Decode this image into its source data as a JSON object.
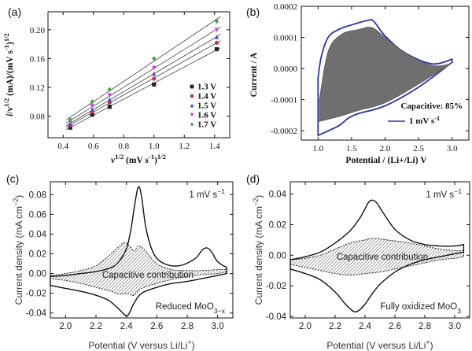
{
  "panels": {
    "a": "(a)",
    "b": "(b)",
    "c": "(c)",
    "d": "(d)"
  },
  "chart_data": [
    {
      "id": "a",
      "type": "scatter",
      "xlabel": "v1/2 (mV s-1)1/2",
      "ylabel": "i/v1/2 (mA)/(mV s-1)1/2",
      "xlim": [
        0.3,
        1.5
      ],
      "ylim": [
        0.05,
        0.225
      ],
      "xticks": [
        "0.4",
        "0.6",
        "0.8",
        "1.0",
        "1.2",
        "1.4"
      ],
      "yticks": [
        "0.08",
        "0.12",
        "0.16",
        "0.20"
      ],
      "x": [
        0.447,
        0.592,
        0.707,
        1.0,
        1.414
      ],
      "series": [
        {
          "name": "1.3 V",
          "marker": "square",
          "color": "#222222",
          "values": [
            0.064,
            0.082,
            0.093,
            0.124,
            0.173
          ]
        },
        {
          "name": "1.4 V",
          "marker": "circle",
          "color": "#d0325a",
          "values": [
            0.067,
            0.086,
            0.099,
            0.132,
            0.182
          ]
        },
        {
          "name": "1.5 V",
          "marker": "triangle-up",
          "color": "#3a4fcf",
          "values": [
            0.069,
            0.089,
            0.103,
            0.139,
            0.19
          ]
        },
        {
          "name": "1.6 V",
          "marker": "triangle-down",
          "color": "#d838d8",
          "values": [
            0.072,
            0.094,
            0.109,
            0.147,
            0.2
          ]
        },
        {
          "name": "1.7 V",
          "marker": "diamond",
          "color": "#3ea53e",
          "values": [
            0.075,
            0.1,
            0.117,
            0.16,
            0.212
          ]
        }
      ]
    },
    {
      "id": "b",
      "type": "line",
      "xlabel": "Potential / (Li+/Li) V",
      "ylabel": "Current / A",
      "xlim": [
        0.75,
        3.25
      ],
      "ylim": [
        -0.00023,
        0.0002
      ],
      "xticks": [
        "1.0",
        "1.5",
        "2.0",
        "2.5",
        "3.0"
      ],
      "yticks": [
        "-0.0002",
        "-0.0001",
        "0.0000",
        "0.0001",
        "0.0002"
      ],
      "annotation": "Capacitive: 85%",
      "legend": "1 mV s-1",
      "series": [
        {
          "name": "1 mV s-1",
          "color": "#2a36a8",
          "upper_x": [
            1.0,
            1.05,
            1.15,
            1.3,
            1.5,
            1.75,
            1.83,
            2.0,
            2.3,
            2.7,
            3.0
          ],
          "upper_y": [
            -3e-05,
            4e-05,
            0.0001,
            0.000125,
            0.00014,
            0.000155,
            0.000152,
            0.000105,
            5e-05,
            1.5e-05,
            3e-05
          ],
          "lower_x": [
            1.0,
            1.3,
            1.45,
            1.6,
            2.0,
            2.5,
            3.0
          ],
          "lower_y": [
            -0.000215,
            -0.000185,
            -0.00016,
            -0.000145,
            -0.00012,
            -6e-05,
            2e-05
          ]
        },
        {
          "name": "capacitive",
          "color": "#555555",
          "upper_x": [
            1.02,
            1.15,
            1.35,
            1.6,
            1.8,
            2.0,
            2.3,
            2.7,
            2.98
          ],
          "upper_y": [
            -0.0001,
            5.5e-05,
            0.00011,
            0.000125,
            0.000132,
            0.0001,
            5e-05,
            1e-05,
            1.5e-05
          ],
          "lower_x": [
            1.02,
            1.3,
            1.6,
            2.0,
            2.5,
            2.98
          ],
          "lower_y": [
            -0.00017,
            -0.000155,
            -0.000135,
            -0.00011,
            -5e-05,
            1.5e-05
          ]
        }
      ]
    },
    {
      "id": "c",
      "type": "line",
      "xlabel": "Potential (V versus Li/Li+)",
      "ylabel": "Current density (mA cm-2)",
      "xlim": [
        1.9,
        3.1
      ],
      "ylim": [
        -0.045,
        0.093
      ],
      "xticks": [
        "2.0",
        "2.2",
        "2.4",
        "2.6",
        "2.8",
        "3.0"
      ],
      "yticks": [
        "-0.04",
        "-0.02",
        "0.00",
        "0.02",
        "0.04",
        "0.06",
        "0.08"
      ],
      "scan_rate": "1 mV s-1",
      "annotation": "Capacitive contribution",
      "sample": "Reduced MoO3-x",
      "series": [
        {
          "name": "total",
          "color": "#111111",
          "upper_x": [
            1.9,
            2.0,
            2.1,
            2.2,
            2.3,
            2.35,
            2.4,
            2.43,
            2.46,
            2.48,
            2.5,
            2.53,
            2.58,
            2.65,
            2.75,
            2.85,
            2.9,
            2.93,
            2.96,
            3.0,
            3.06
          ],
          "upper_y": [
            -0.003,
            -0.002,
            0.0,
            0.002,
            0.006,
            0.012,
            0.025,
            0.045,
            0.075,
            0.088,
            0.078,
            0.045,
            0.02,
            0.01,
            0.008,
            0.015,
            0.024,
            0.026,
            0.022,
            0.012,
            0.006
          ],
          "lower_x": [
            1.9,
            2.0,
            2.1,
            2.2,
            2.28,
            2.33,
            2.37,
            2.4,
            2.42,
            2.45,
            2.5,
            2.6,
            2.7,
            2.8,
            2.9,
            3.0,
            3.06
          ],
          "lower_y": [
            -0.012,
            -0.015,
            -0.018,
            -0.022,
            -0.027,
            -0.033,
            -0.039,
            -0.043,
            -0.04,
            -0.03,
            -0.02,
            -0.014,
            -0.01,
            -0.008,
            -0.005,
            -0.002,
            0.0
          ]
        },
        {
          "name": "capacitive",
          "color": "#333333",
          "upper_x": [
            1.9,
            2.0,
            2.1,
            2.2,
            2.3,
            2.38,
            2.42,
            2.45,
            2.48,
            2.52,
            2.6,
            2.7,
            2.8,
            2.9,
            3.0,
            3.06
          ],
          "upper_y": [
            -0.002,
            0.0,
            0.003,
            0.008,
            0.02,
            0.031,
            0.028,
            0.023,
            0.028,
            0.024,
            0.01,
            0.004,
            0.003,
            0.003,
            0.004,
            0.004
          ],
          "lower_x": [
            1.9,
            2.0,
            2.1,
            2.2,
            2.3,
            2.35,
            2.4,
            2.42,
            2.45,
            2.5,
            2.6,
            2.7,
            2.8,
            2.9,
            3.0,
            3.06
          ],
          "lower_y": [
            -0.005,
            -0.007,
            -0.01,
            -0.014,
            -0.018,
            -0.021,
            -0.02,
            -0.021,
            -0.022,
            -0.015,
            -0.01,
            -0.006,
            -0.003,
            -0.001,
            0.0,
            0.002
          ]
        }
      ]
    },
    {
      "id": "d",
      "type": "line",
      "xlabel": "Potential (V versus Li/Li+)",
      "ylabel": "Current density (mA cm-2)",
      "xlim": [
        1.9,
        3.1
      ],
      "ylim": [
        -0.041,
        0.048
      ],
      "xticks": [
        "2.0",
        "2.2",
        "2.4",
        "2.6",
        "2.8",
        "3.0"
      ],
      "yticks": [
        "-0.04",
        "-0.02",
        "0.00",
        "0.02",
        "0.04"
      ],
      "scan_rate": "1 mV s-1",
      "annotation": "Capacitive contribution",
      "sample": "Fully oxidized MoO3",
      "series": [
        {
          "name": "total",
          "color": "#111111",
          "upper_x": [
            1.9,
            2.0,
            2.1,
            2.2,
            2.3,
            2.37,
            2.42,
            2.45,
            2.48,
            2.52,
            2.6,
            2.7,
            2.8,
            2.9,
            3.0,
            3.06
          ],
          "upper_y": [
            -0.003,
            -0.001,
            0.002,
            0.008,
            0.016,
            0.025,
            0.034,
            0.036,
            0.034,
            0.028,
            0.017,
            0.01,
            0.007,
            0.006,
            0.006,
            0.007
          ],
          "lower_x": [
            1.9,
            2.0,
            2.1,
            2.2,
            2.26,
            2.3,
            2.33,
            2.36,
            2.4,
            2.45,
            2.5,
            2.6,
            2.7,
            2.8,
            2.9,
            3.0,
            3.06
          ],
          "lower_y": [
            -0.009,
            -0.012,
            -0.016,
            -0.024,
            -0.031,
            -0.035,
            -0.037,
            -0.036,
            -0.032,
            -0.025,
            -0.019,
            -0.011,
            -0.006,
            -0.003,
            -0.001,
            0.001,
            0.002
          ]
        },
        {
          "name": "capacitive",
          "color": "#333333",
          "upper_x": [
            1.9,
            2.0,
            2.1,
            2.2,
            2.3,
            2.4,
            2.45,
            2.55,
            2.7,
            2.8,
            2.9,
            3.0,
            3.06
          ],
          "upper_y": [
            -0.003,
            -0.002,
            0.0,
            0.004,
            0.008,
            0.01,
            0.011,
            0.01,
            0.008,
            0.006,
            0.004,
            0.003,
            0.003
          ],
          "lower_x": [
            1.9,
            2.0,
            2.1,
            2.2,
            2.3,
            2.4,
            2.5,
            2.6,
            2.7,
            2.8,
            2.9,
            3.0,
            3.06
          ],
          "lower_y": [
            -0.006,
            -0.008,
            -0.01,
            -0.012,
            -0.013,
            -0.012,
            -0.011,
            -0.009,
            -0.007,
            -0.005,
            -0.003,
            -0.002,
            -0.001
          ]
        }
      ]
    }
  ]
}
